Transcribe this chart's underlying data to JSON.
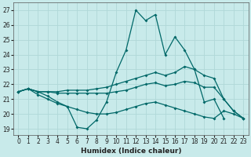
{
  "xlabel": "Humidex (Indice chaleur)",
  "xlim": [
    -0.5,
    23.5
  ],
  "ylim": [
    18.6,
    27.5
  ],
  "yticks": [
    19,
    20,
    21,
    22,
    23,
    24,
    25,
    26,
    27
  ],
  "xticks": [
    0,
    1,
    2,
    3,
    4,
    5,
    6,
    7,
    8,
    9,
    10,
    11,
    12,
    13,
    14,
    15,
    16,
    17,
    18,
    19,
    20,
    21,
    22,
    23
  ],
  "background_color": "#c8eaea",
  "grid_color": "#b0d8d8",
  "line_color": "#006868",
  "lines": [
    {
      "x": [
        0,
        1,
        2,
        3,
        4,
        5,
        6,
        7,
        8,
        9,
        10,
        11,
        12,
        13,
        14,
        15,
        16,
        17,
        18,
        19,
        20,
        21
      ],
      "y": [
        21.5,
        21.7,
        21.5,
        21.2,
        20.8,
        20.5,
        19.1,
        19.0,
        19.6,
        20.8,
        22.8,
        24.3,
        27.0,
        26.3,
        26.7,
        24.0,
        25.2,
        24.3,
        23.0,
        20.8,
        21.0,
        19.7
      ]
    },
    {
      "x": [
        0,
        1,
        2,
        3,
        4,
        5,
        6,
        7,
        8,
        9,
        10,
        11,
        12,
        13,
        14,
        15,
        16,
        17,
        18,
        19,
        20,
        21,
        22,
        23
      ],
      "y": [
        21.5,
        21.7,
        21.5,
        21.5,
        21.5,
        21.6,
        21.6,
        21.6,
        21.7,
        21.8,
        22.0,
        22.2,
        22.4,
        22.6,
        22.8,
        22.6,
        22.8,
        23.2,
        23.0,
        22.6,
        22.4,
        21.0,
        20.2,
        19.7
      ]
    },
    {
      "x": [
        0,
        1,
        2,
        3,
        4,
        5,
        6,
        7,
        8,
        9,
        10,
        11,
        12,
        13,
        14,
        15,
        16,
        17,
        18,
        19,
        20,
        21,
        22,
        23
      ],
      "y": [
        21.5,
        21.7,
        21.5,
        21.5,
        21.4,
        21.4,
        21.4,
        21.4,
        21.4,
        21.4,
        21.5,
        21.6,
        21.8,
        22.0,
        22.1,
        21.9,
        22.0,
        22.2,
        22.1,
        21.8,
        21.8,
        21.0,
        20.2,
        19.7
      ]
    },
    {
      "x": [
        0,
        1,
        2,
        3,
        4,
        5,
        6,
        7,
        8,
        9,
        10,
        11,
        12,
        13,
        14,
        15,
        16,
        17,
        18,
        19,
        20,
        21,
        22,
        23
      ],
      "y": [
        21.5,
        21.7,
        21.3,
        21.0,
        20.7,
        20.5,
        20.3,
        20.1,
        20.0,
        20.0,
        20.1,
        20.3,
        20.5,
        20.7,
        20.8,
        20.6,
        20.4,
        20.2,
        20.0,
        19.8,
        19.7,
        20.2,
        20.0,
        19.7
      ]
    }
  ]
}
